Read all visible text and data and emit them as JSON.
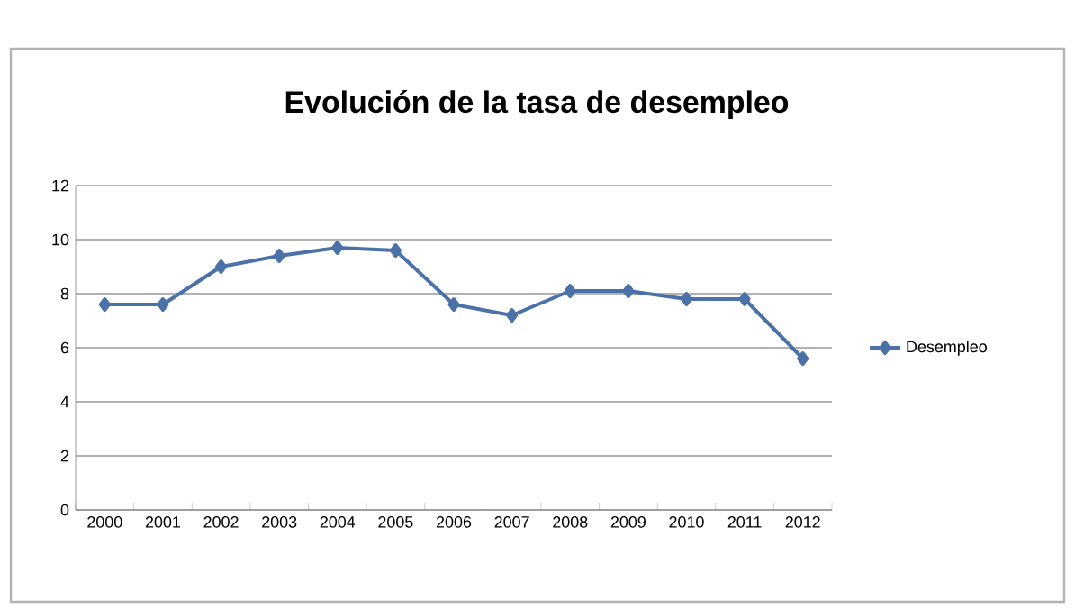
{
  "chart_data": {
    "type": "line",
    "title": "Evolución de la tasa de desempleo",
    "categories": [
      "2000",
      "2001",
      "2002",
      "2003",
      "2004",
      "2005",
      "2006",
      "2007",
      "2008",
      "2009",
      "2010",
      "2011",
      "2012"
    ],
    "series": [
      {
        "name": "Desempleo",
        "color": "#4a72a8",
        "values": [
          7.6,
          7.6,
          9.0,
          9.4,
          9.7,
          9.6,
          7.6,
          7.2,
          8.1,
          8.1,
          7.8,
          7.8,
          5.6
        ]
      }
    ],
    "ylim": [
      0,
      12
    ],
    "yticks": [
      0,
      2,
      4,
      6,
      8,
      10,
      12
    ],
    "grid": "y",
    "legend": "right",
    "marker": "diamond",
    "line_style": "solid"
  }
}
